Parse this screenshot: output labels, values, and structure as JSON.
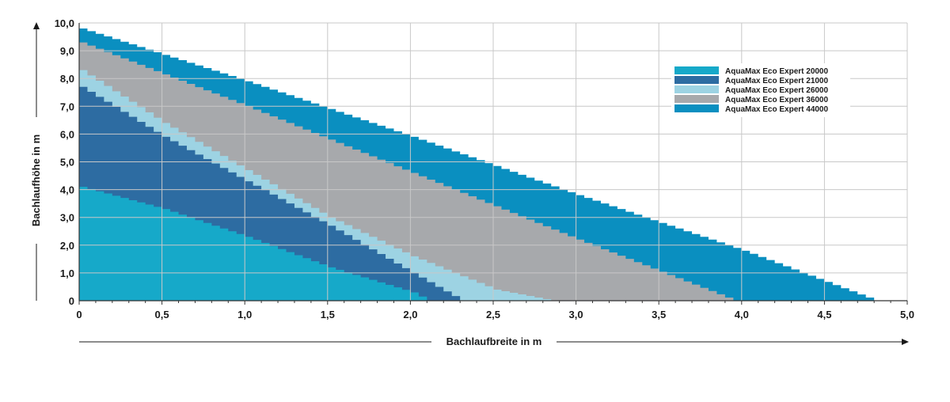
{
  "chart_data": {
    "type": "area",
    "xlabel": "Bachlaufbreite in m",
    "ylabel": "Bachlaufhöhe in m",
    "xlim": [
      0,
      5.0
    ],
    "ylim": [
      0,
      10.0
    ],
    "x_ticks": [
      "0",
      "0,5",
      "1,0",
      "1,5",
      "2,0",
      "2,5",
      "3,0",
      "3,5",
      "4,0",
      "4,5",
      "5,0"
    ],
    "y_ticks": [
      "0",
      "1,0",
      "2,0",
      "3,0",
      "4,0",
      "5,0",
      "6,0",
      "7,0",
      "8,0",
      "9,0",
      "10,0"
    ],
    "grid": true,
    "legend_position": "top-right",
    "series": [
      {
        "name": "AquaMax Eco Expert 44000",
        "color": "#0a8fc0",
        "x": [
          0,
          1.0,
          2.0,
          3.0,
          4.0,
          4.8
        ],
        "y": [
          9.8,
          7.9,
          5.9,
          3.8,
          1.8,
          0
        ]
      },
      {
        "name": "AquaMax Eco Expert 36000",
        "color": "#a7a9ac",
        "x": [
          0,
          1.0,
          2.0,
          3.0,
          3.95
        ],
        "y": [
          9.3,
          7.0,
          4.6,
          2.2,
          0
        ]
      },
      {
        "name": "AquaMax Eco Expert 26000",
        "color": "#9dd3e3",
        "x": [
          0,
          0.5,
          1.0,
          1.5,
          2.0,
          2.5,
          2.85
        ],
        "y": [
          8.3,
          6.4,
          4.7,
          3.0,
          1.6,
          0.4,
          0
        ]
      },
      {
        "name": "AquaMax Eco Expert 21000",
        "color": "#2d6ca2",
        "x": [
          0,
          0.5,
          1.0,
          1.5,
          2.0,
          2.3
        ],
        "y": [
          7.7,
          5.9,
          4.3,
          2.7,
          1.0,
          0
        ]
      },
      {
        "name": "AquaMax Eco Expert 20000",
        "color": "#16a9c9",
        "x": [
          0,
          0.5,
          1.0,
          1.5,
          2.0,
          2.1
        ],
        "y": [
          4.1,
          3.3,
          2.3,
          1.2,
          0.3,
          0
        ]
      }
    ],
    "legend": [
      {
        "label": "AquaMax Eco Expert 20000",
        "color": "#16a9c9"
      },
      {
        "label": "AquaMax Eco Expert 21000",
        "color": "#2d6ca2"
      },
      {
        "label": "AquaMax Eco Expert 26000",
        "color": "#9dd3e3"
      },
      {
        "label": "AquaMax Eco Expert 36000",
        "color": "#a7a9ac"
      },
      {
        "label": "AquaMax Eco Expert 44000",
        "color": "#0a8fc0"
      }
    ]
  }
}
